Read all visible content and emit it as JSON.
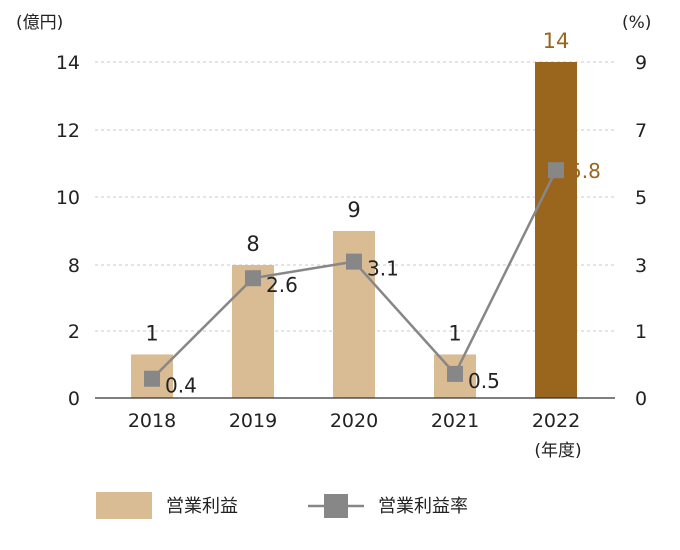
{
  "chart_data": {
    "type": "bar",
    "categories": [
      "2018",
      "2019",
      "2020",
      "2021",
      "2022"
    ],
    "x_unit_label": "(年度)",
    "y_left": {
      "unit_label": "(億円)",
      "tick_labels": [
        "0",
        "2",
        "8",
        "10",
        "12",
        "14"
      ]
    },
    "y_right": {
      "unit_label": "(%)",
      "tick_labels": [
        "0",
        "1",
        "3",
        "5",
        "7",
        "9"
      ]
    },
    "grid": true,
    "series": [
      {
        "name": "営業利益",
        "type": "bar",
        "axis": "left",
        "values": [
          1,
          8,
          9,
          1,
          14
        ],
        "value_labels": [
          "1",
          "8",
          "9",
          "1",
          "14"
        ],
        "color": "#D9BC94",
        "highlight_color": "#9A661E"
      },
      {
        "name": "営業利益率",
        "type": "line",
        "axis": "right",
        "values": [
          0.4,
          2.6,
          3.1,
          0.5,
          5.8
        ],
        "value_labels": [
          "0.4",
          "2.6",
          "3.1",
          "0.5",
          "5.8"
        ],
        "color": "#878787"
      }
    ],
    "legend_position": "bottom-left"
  }
}
